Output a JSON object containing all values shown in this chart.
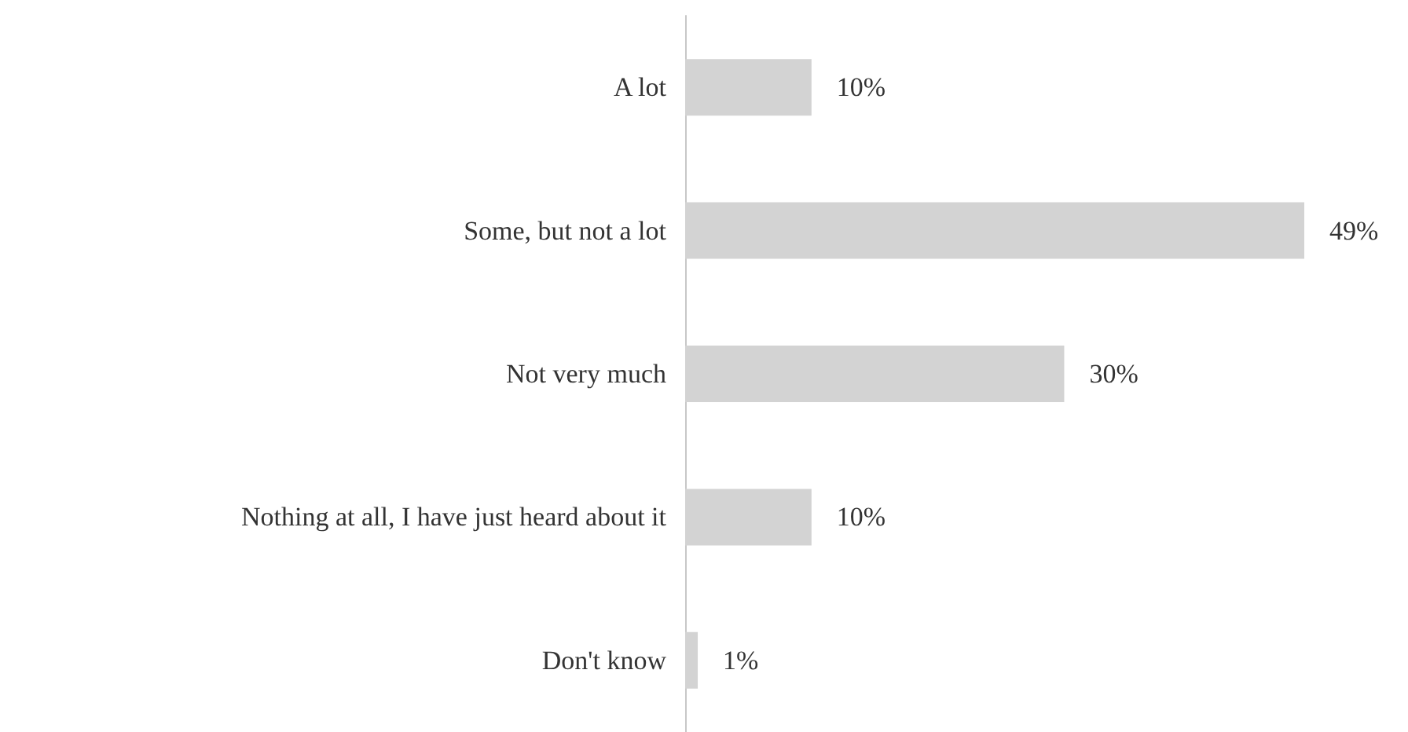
{
  "chart_data": {
    "type": "bar",
    "orientation": "horizontal",
    "categories": [
      "A lot",
      "Some, but not a lot",
      "Not very much",
      "Nothing at all, I have just heard about it",
      "Don't know"
    ],
    "values": [
      10,
      49,
      30,
      10,
      1
    ],
    "value_labels": [
      "10%",
      "49%",
      "30%",
      "10%",
      "1%"
    ],
    "color": "#d3d3d3",
    "grid": false
  }
}
